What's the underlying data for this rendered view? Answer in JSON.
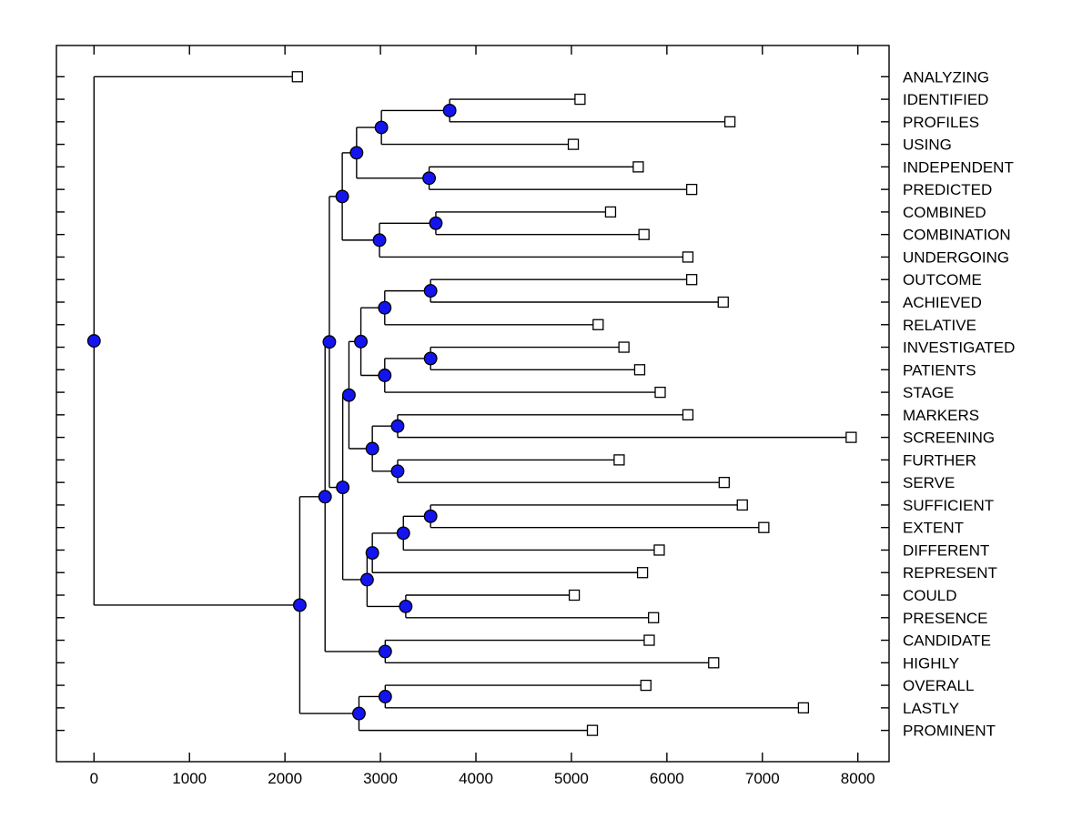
{
  "figure": {
    "background": "#ffffff",
    "axis_color": "#000000",
    "line_color": "#000000",
    "node_fill": "#1414f0",
    "node_stroke": "#000000",
    "leaf_marker_fill": "#ffffff",
    "leaf_marker_stroke": "#000000"
  },
  "chart_data": {
    "type": "dendrogram",
    "orientation": "horizontal, leaf labels on right",
    "grid": "off",
    "x_axis": {
      "range": [
        0,
        8000
      ],
      "ticks": [
        0,
        1000,
        2000,
        3000,
        4000,
        5000,
        6000,
        7000,
        8000
      ],
      "tick_labels": [
        "0",
        "1000",
        "2000",
        "3000",
        "4000",
        "5000",
        "6000",
        "7000",
        "8000"
      ]
    },
    "leaves": [
      {
        "label": "ANALYZING",
        "value": 2130
      },
      {
        "label": "IDENTIFIED",
        "value": 5090
      },
      {
        "label": "PROFILES",
        "value": 6660
      },
      {
        "label": "USING",
        "value": 5020
      },
      {
        "label": "INDEPENDENT",
        "value": 5700
      },
      {
        "label": "PREDICTED",
        "value": 6260
      },
      {
        "label": "COMBINED",
        "value": 5410
      },
      {
        "label": "COMBINATION",
        "value": 5760
      },
      {
        "label": "UNDERGOING",
        "value": 6220
      },
      {
        "label": "OUTCOME",
        "value": 6260
      },
      {
        "label": "ACHIEVED",
        "value": 6590
      },
      {
        "label": "RELATIVE",
        "value": 5280
      },
      {
        "label": "INVESTIGATED",
        "value": 5550
      },
      {
        "label": "PATIENTS",
        "value": 5715
      },
      {
        "label": "STAGE",
        "value": 5930
      },
      {
        "label": "MARKERS",
        "value": 6220
      },
      {
        "label": "SCREENING",
        "value": 7930
      },
      {
        "label": "FURTHER",
        "value": 5500
      },
      {
        "label": "SERVE",
        "value": 6600
      },
      {
        "label": "SUFFICIENT",
        "value": 6790
      },
      {
        "label": "EXTENT",
        "value": 7015
      },
      {
        "label": "DIFFERENT",
        "value": 5920
      },
      {
        "label": "REPRESENT",
        "value": 5745
      },
      {
        "label": "COULD",
        "value": 5030
      },
      {
        "label": "PRESENCE",
        "value": 5860
      },
      {
        "label": "CANDIDATE",
        "value": 5815
      },
      {
        "label": "HIGHLY",
        "value": 6490
      },
      {
        "label": "OVERALL",
        "value": 5780
      },
      {
        "label": "LASTLY",
        "value": 7430
      },
      {
        "label": "PROMINENT",
        "value": 5220
      }
    ],
    "merges": [
      {
        "id": "m1",
        "children": [
          "IDENTIFIED",
          "PROFILES"
        ],
        "value": 3725
      },
      {
        "id": "m2",
        "children": [
          "m1",
          "USING"
        ],
        "value": 3010
      },
      {
        "id": "m3",
        "children": [
          "INDEPENDENT",
          "PREDICTED"
        ],
        "value": 3510
      },
      {
        "id": "m4",
        "children": [
          "m2",
          "m3"
        ],
        "value": 2750
      },
      {
        "id": "m5",
        "children": [
          "COMBINED",
          "COMBINATION"
        ],
        "value": 3580
      },
      {
        "id": "m6",
        "children": [
          "m5",
          "UNDERGOING"
        ],
        "value": 2990
      },
      {
        "id": "m7",
        "children": [
          "m4",
          "m6"
        ],
        "value": 2600
      },
      {
        "id": "m8",
        "children": [
          "OUTCOME",
          "ACHIEVED"
        ],
        "value": 3525
      },
      {
        "id": "m9",
        "children": [
          "m8",
          "RELATIVE"
        ],
        "value": 3045
      },
      {
        "id": "m10",
        "children": [
          "INVESTIGATED",
          "PATIENTS"
        ],
        "value": 3525
      },
      {
        "id": "m11",
        "children": [
          "m10",
          "STAGE"
        ],
        "value": 3045
      },
      {
        "id": "m12",
        "children": [
          "m9",
          "m11"
        ],
        "value": 2795
      },
      {
        "id": "m13",
        "children": [
          "MARKERS",
          "SCREENING"
        ],
        "value": 3180
      },
      {
        "id": "m14",
        "children": [
          "FURTHER",
          "SERVE"
        ],
        "value": 3180
      },
      {
        "id": "m15",
        "children": [
          "m13",
          "m14"
        ],
        "value": 2915
      },
      {
        "id": "m16",
        "children": [
          "m12",
          "m15"
        ],
        "value": 2670
      },
      {
        "id": "m17",
        "children": [
          "SUFFICIENT",
          "EXTENT"
        ],
        "value": 3525
      },
      {
        "id": "m18",
        "children": [
          "m17",
          "DIFFERENT"
        ],
        "value": 3240
      },
      {
        "id": "m19",
        "children": [
          "m18",
          "REPRESENT"
        ],
        "value": 2915
      },
      {
        "id": "m20",
        "children": [
          "COULD",
          "PRESENCE"
        ],
        "value": 3265
      },
      {
        "id": "m21",
        "children": [
          "m19",
          "m20"
        ],
        "value": 2860
      },
      {
        "id": "m22",
        "children": [
          "m16",
          "m21"
        ],
        "value": 2605
      },
      {
        "id": "m23",
        "children": [
          "m7",
          "m22"
        ],
        "value": 2465
      },
      {
        "id": "m24",
        "children": [
          "CANDIDATE",
          "HIGHLY"
        ],
        "value": 3050
      },
      {
        "id": "m25",
        "children": [
          "m23",
          "m24"
        ],
        "value": 2420
      },
      {
        "id": "m26",
        "children": [
          "OVERALL",
          "LASTLY"
        ],
        "value": 3050
      },
      {
        "id": "m27",
        "children": [
          "m26",
          "PROMINENT"
        ],
        "value": 2775
      },
      {
        "id": "m28",
        "children": [
          "m25",
          "m27"
        ],
        "value": 2155
      },
      {
        "id": "m29",
        "children": [
          "ANALYZING",
          "m28"
        ],
        "value": 0
      }
    ]
  }
}
